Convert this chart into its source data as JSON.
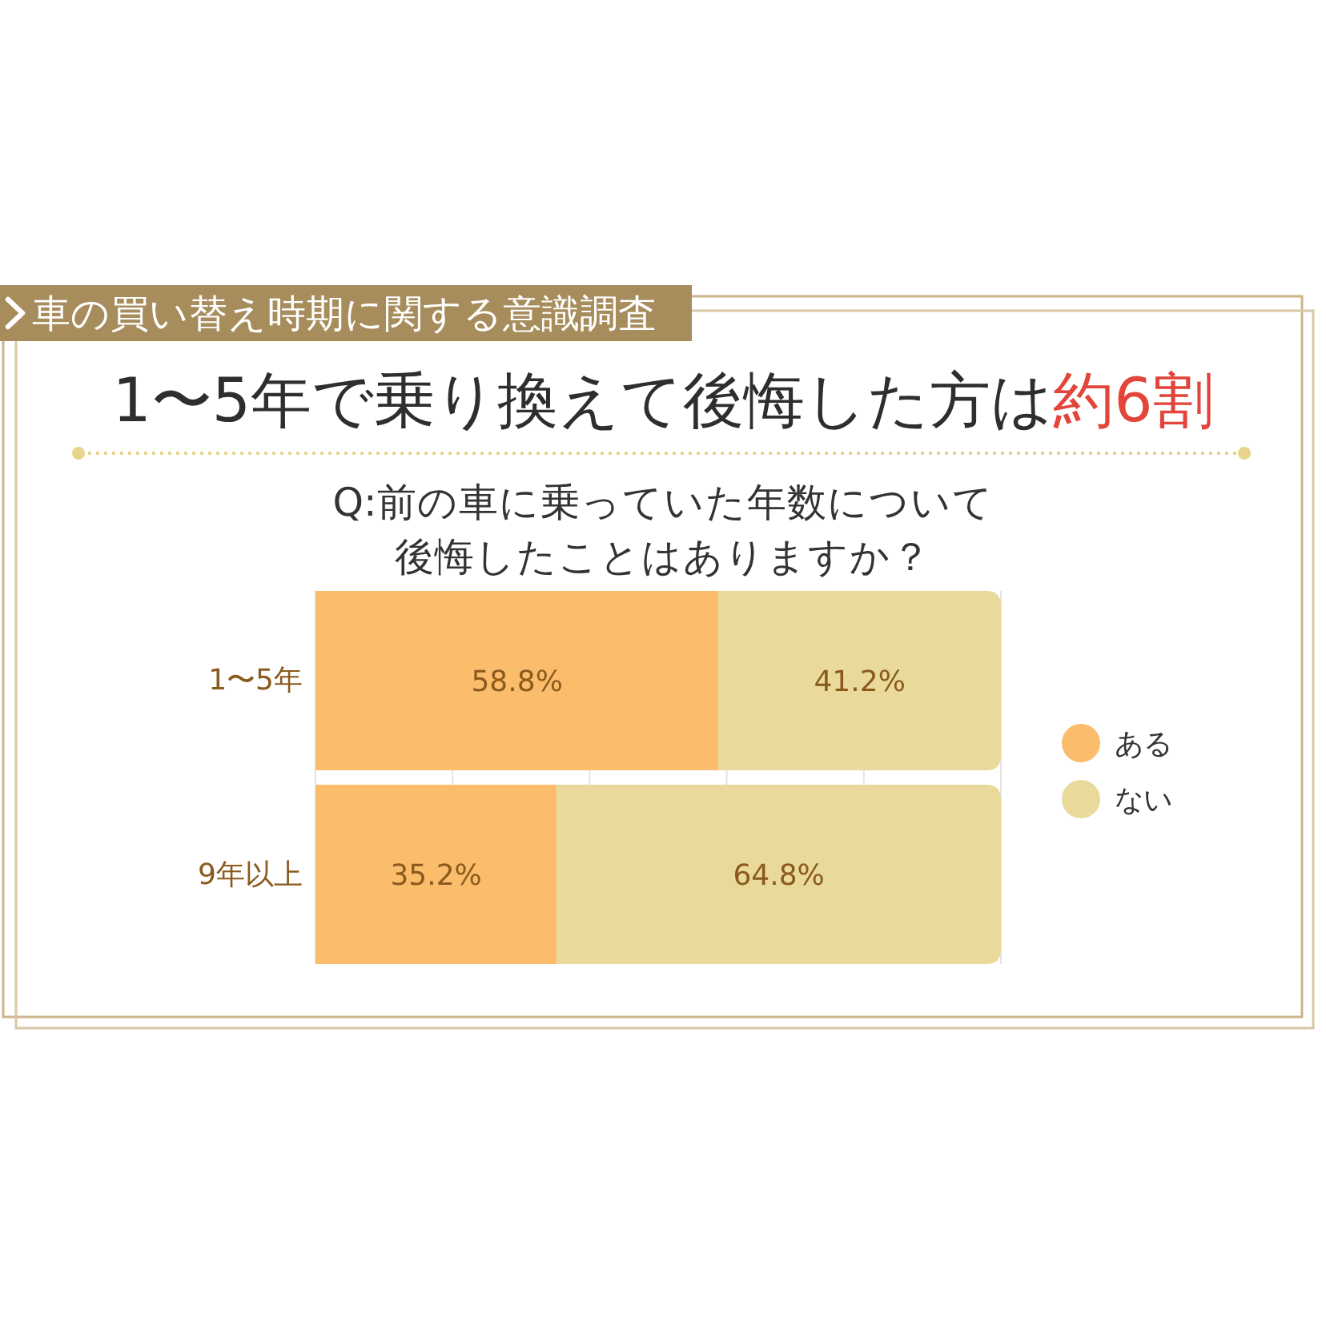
{
  "chart_data": {
    "type": "bar",
    "orientation": "horizontal",
    "stacked": true,
    "title": "車の買い替え時期に関する意識調査",
    "subtitle": "1〜5年で乗り換えて後悔した方は",
    "annotations": [
      "約6割",
      "Q:前の車に乗っていた年数について",
      "後悔したことはありますか？"
    ],
    "categories": [
      "1〜5年",
      "9年以上"
    ],
    "series": [
      {
        "name": "ある",
        "color": "#fbbd6b",
        "values": [
          58.8,
          35.2
        ],
        "value_labels": [
          "58.8%",
          "35.2%"
        ]
      },
      {
        "name": "ない",
        "color": "#e9da9c",
        "values": [
          41.2,
          64.8
        ],
        "value_labels": [
          "41.2%",
          "64.8%"
        ]
      }
    ],
    "xlim": [
      0,
      100
    ],
    "xticks": [
      {
        "value": 0,
        "label": null
      },
      {
        "value": 20,
        "label": null
      },
      {
        "value": 40,
        "label": null
      },
      {
        "value": 60,
        "label": null
      },
      {
        "value": 80,
        "label": null
      },
      {
        "value": 100,
        "label": null
      }
    ],
    "grid": "x",
    "tick_labels": "y",
    "legend": "right"
  }
}
